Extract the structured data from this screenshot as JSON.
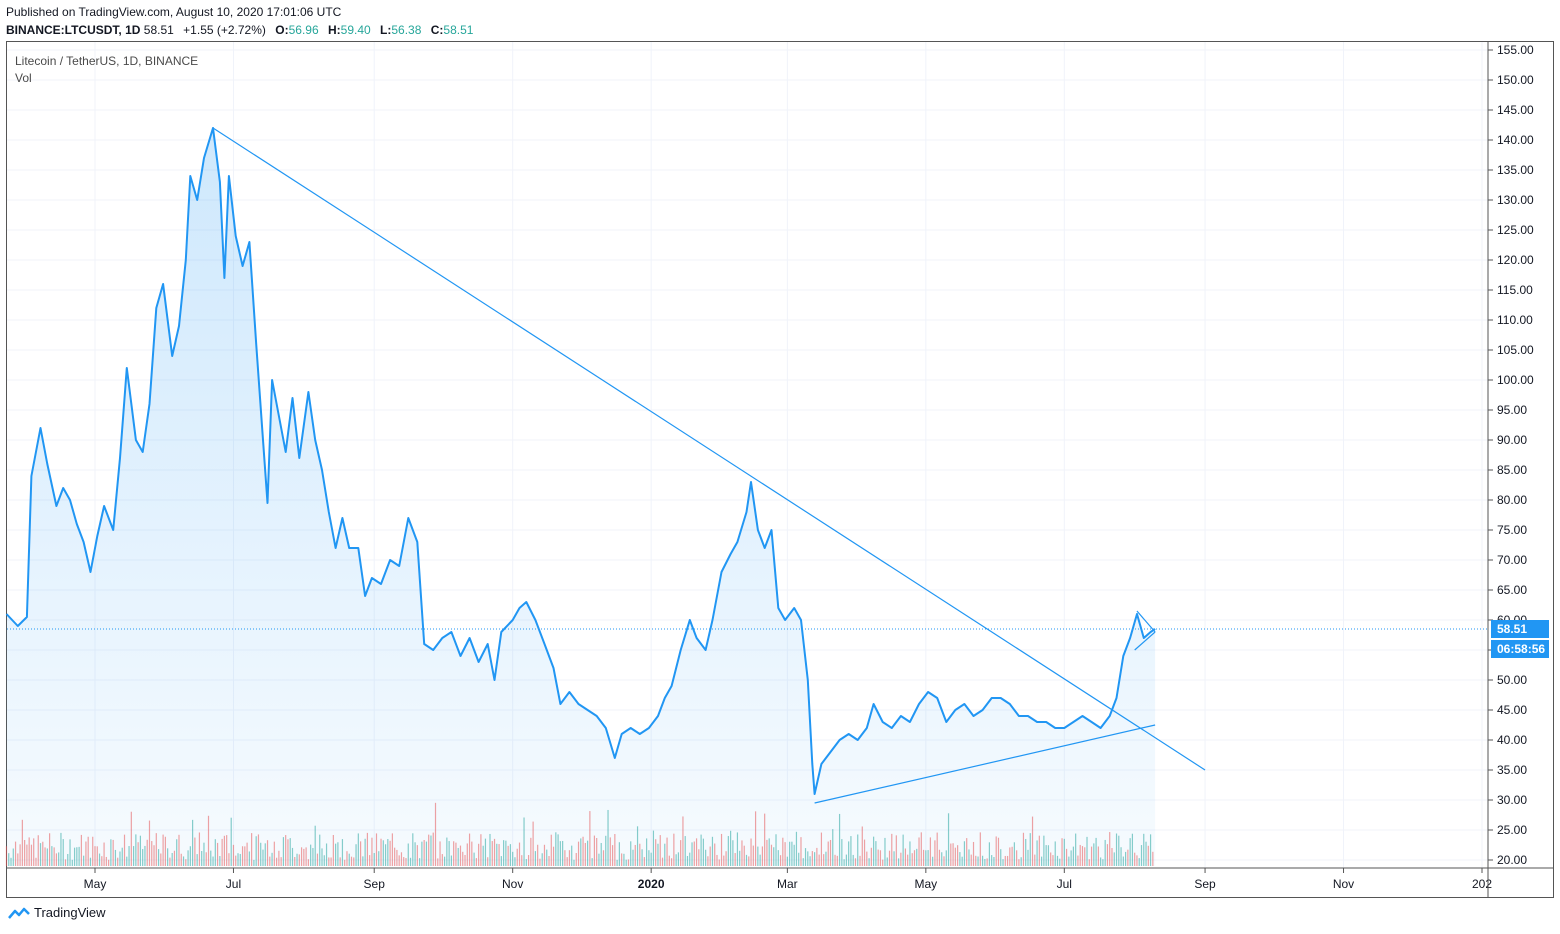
{
  "header": {
    "published": "Published on TradingView.com, August 10, 2020 17:01:06 UTC",
    "symbol": "BINANCE:LTCUSDT, 1D",
    "last": "58.51",
    "change": "+1.55 (+2.72%)",
    "open_label": "O:",
    "open": "56.96",
    "high_label": "H:",
    "high": "59.40",
    "low_label": "L:",
    "low": "56.38",
    "close_label": "C:",
    "close": "58.51"
  },
  "legend": {
    "series_title": "Litecoin / TetherUS, 1D, BINANCE",
    "volume_title": "Vol"
  },
  "price_badge": "58.51",
  "countdown_badge": "06:58:56",
  "footer": {
    "brand": "TradingView"
  },
  "colors": {
    "line": "#2196f3",
    "fill": "#2196f3",
    "trend": "#2196f3",
    "vol_up": "#26a69a",
    "vol_down": "#ef5350",
    "grid": "#f0f3fa"
  },
  "chart_data": {
    "type": "area",
    "title": "Litecoin / TetherUS, 1D, BINANCE",
    "xlabel": "",
    "ylabel": "",
    "ylim": [
      20,
      155
    ],
    "y_ticks": [
      "20.00",
      "25.00",
      "30.00",
      "35.00",
      "40.00",
      "45.00",
      "50.00",
      "55.00",
      "60.00",
      "65.00",
      "70.00",
      "75.00",
      "80.00",
      "85.00",
      "90.00",
      "95.00",
      "100.00",
      "105.00",
      "110.00",
      "115.00",
      "120.00",
      "125.00",
      "130.00",
      "135.00",
      "140.00",
      "145.00",
      "150.00",
      "155.00"
    ],
    "x_ticks": [
      {
        "label": "May",
        "date": "2019-05-01"
      },
      {
        "label": "Jul",
        "date": "2019-07-01"
      },
      {
        "label": "Sep",
        "date": "2019-09-01"
      },
      {
        "label": "Nov",
        "date": "2019-11-01"
      },
      {
        "label": "2020",
        "date": "2020-01-01"
      },
      {
        "label": "Mar",
        "date": "2020-03-01"
      },
      {
        "label": "May",
        "date": "2020-05-01"
      },
      {
        "label": "Jul",
        "date": "2020-07-01"
      },
      {
        "label": "Sep",
        "date": "2020-09-01"
      },
      {
        "label": "Nov",
        "date": "2020-11-01"
      },
      {
        "label": "202",
        "date": "2021-01-01"
      }
    ],
    "grid": true,
    "series": [
      {
        "values": [
          [
            "2019-03-23",
            61.0
          ],
          [
            "2019-03-28",
            59.0
          ],
          [
            "2019-04-01",
            60.5
          ],
          [
            "2019-04-03",
            84.0
          ],
          [
            "2019-04-07",
            92.0
          ],
          [
            "2019-04-10",
            86.0
          ],
          [
            "2019-04-14",
            79.0
          ],
          [
            "2019-04-17",
            82.0
          ],
          [
            "2019-04-20",
            80.0
          ],
          [
            "2019-04-23",
            76.0
          ],
          [
            "2019-04-26",
            73.0
          ],
          [
            "2019-04-29",
            68.0
          ],
          [
            "2019-05-02",
            74.0
          ],
          [
            "2019-05-05",
            79.0
          ],
          [
            "2019-05-09",
            75.0
          ],
          [
            "2019-05-12",
            87.0
          ],
          [
            "2019-05-15",
            102.0
          ],
          [
            "2019-05-19",
            90.0
          ],
          [
            "2019-05-22",
            88.0
          ],
          [
            "2019-05-25",
            96.0
          ],
          [
            "2019-05-28",
            112.0
          ],
          [
            "2019-05-31",
            116.0
          ],
          [
            "2019-06-04",
            104.0
          ],
          [
            "2019-06-07",
            109.0
          ],
          [
            "2019-06-10",
            120.0
          ],
          [
            "2019-06-12",
            134.0
          ],
          [
            "2019-06-15",
            130.0
          ],
          [
            "2019-06-18",
            137.0
          ],
          [
            "2019-06-22",
            142.0
          ],
          [
            "2019-06-25",
            133.0
          ],
          [
            "2019-06-27",
            117.0
          ],
          [
            "2019-06-29",
            134.0
          ],
          [
            "2019-07-02",
            124.0
          ],
          [
            "2019-07-05",
            119.0
          ],
          [
            "2019-07-08",
            123.0
          ],
          [
            "2019-07-11",
            106.0
          ],
          [
            "2019-07-14",
            90.0
          ],
          [
            "2019-07-16",
            79.5
          ],
          [
            "2019-07-18",
            100.0
          ],
          [
            "2019-07-21",
            94.0
          ],
          [
            "2019-07-24",
            88.0
          ],
          [
            "2019-07-27",
            97.0
          ],
          [
            "2019-07-30",
            87.0
          ],
          [
            "2019-08-03",
            98.0
          ],
          [
            "2019-08-06",
            90.0
          ],
          [
            "2019-08-09",
            85.0
          ],
          [
            "2019-08-12",
            78.0
          ],
          [
            "2019-08-15",
            72.0
          ],
          [
            "2019-08-18",
            77.0
          ],
          [
            "2019-08-21",
            72.0
          ],
          [
            "2019-08-25",
            72.0
          ],
          [
            "2019-08-28",
            64.0
          ],
          [
            "2019-08-31",
            67.0
          ],
          [
            "2019-09-04",
            66.0
          ],
          [
            "2019-09-08",
            70.0
          ],
          [
            "2019-09-12",
            69.0
          ],
          [
            "2019-09-16",
            77.0
          ],
          [
            "2019-09-20",
            73.0
          ],
          [
            "2019-09-23",
            56.0
          ],
          [
            "2019-09-27",
            55.0
          ],
          [
            "2019-10-01",
            57.0
          ],
          [
            "2019-10-05",
            58.0
          ],
          [
            "2019-10-09",
            54.0
          ],
          [
            "2019-10-13",
            57.0
          ],
          [
            "2019-10-17",
            53.0
          ],
          [
            "2019-10-21",
            56.0
          ],
          [
            "2019-10-24",
            50.0
          ],
          [
            "2019-10-27",
            58.0
          ],
          [
            "2019-11-01",
            60.0
          ],
          [
            "2019-11-04",
            62.0
          ],
          [
            "2019-11-07",
            63.0
          ],
          [
            "2019-11-11",
            60.0
          ],
          [
            "2019-11-15",
            56.0
          ],
          [
            "2019-11-19",
            52.0
          ],
          [
            "2019-11-22",
            46.0
          ],
          [
            "2019-11-26",
            48.0
          ],
          [
            "2019-11-30",
            46.0
          ],
          [
            "2019-12-04",
            45.0
          ],
          [
            "2019-12-08",
            44.0
          ],
          [
            "2019-12-12",
            42.0
          ],
          [
            "2019-12-16",
            37.0
          ],
          [
            "2019-12-19",
            41.0
          ],
          [
            "2019-12-23",
            42.0
          ],
          [
            "2019-12-27",
            41.0
          ],
          [
            "2019-12-31",
            42.0
          ],
          [
            "2020-01-04",
            44.0
          ],
          [
            "2020-01-07",
            47.0
          ],
          [
            "2020-01-10",
            49.0
          ],
          [
            "2020-01-14",
            55.0
          ],
          [
            "2020-01-18",
            60.0
          ],
          [
            "2020-01-21",
            57.0
          ],
          [
            "2020-01-25",
            55.0
          ],
          [
            "2020-01-28",
            60.0
          ],
          [
            "2020-02-01",
            68.0
          ],
          [
            "2020-02-05",
            71.0
          ],
          [
            "2020-02-08",
            73.0
          ],
          [
            "2020-02-12",
            78.0
          ],
          [
            "2020-02-14",
            83.0
          ],
          [
            "2020-02-17",
            75.0
          ],
          [
            "2020-02-20",
            72.0
          ],
          [
            "2020-02-23",
            75.0
          ],
          [
            "2020-02-26",
            62.0
          ],
          [
            "2020-02-29",
            60.0
          ],
          [
            "2020-03-04",
            62.0
          ],
          [
            "2020-03-07",
            60.0
          ],
          [
            "2020-03-10",
            50.0
          ],
          [
            "2020-03-12",
            36.0
          ],
          [
            "2020-03-13",
            31.0
          ],
          [
            "2020-03-16",
            36.0
          ],
          [
            "2020-03-20",
            38.0
          ],
          [
            "2020-03-24",
            40.0
          ],
          [
            "2020-03-28",
            41.0
          ],
          [
            "2020-04-01",
            40.0
          ],
          [
            "2020-04-05",
            42.0
          ],
          [
            "2020-04-08",
            46.0
          ],
          [
            "2020-04-12",
            43.0
          ],
          [
            "2020-04-16",
            42.0
          ],
          [
            "2020-04-20",
            44.0
          ],
          [
            "2020-04-24",
            43.0
          ],
          [
            "2020-04-28",
            46.0
          ],
          [
            "2020-05-02",
            48.0
          ],
          [
            "2020-05-06",
            47.0
          ],
          [
            "2020-05-10",
            43.0
          ],
          [
            "2020-05-14",
            45.0
          ],
          [
            "2020-05-18",
            46.0
          ],
          [
            "2020-05-22",
            44.0
          ],
          [
            "2020-05-26",
            45.0
          ],
          [
            "2020-05-30",
            47.0
          ],
          [
            "2020-06-03",
            47.0
          ],
          [
            "2020-06-07",
            46.0
          ],
          [
            "2020-06-11",
            44.0
          ],
          [
            "2020-06-15",
            44.0
          ],
          [
            "2020-06-19",
            43.0
          ],
          [
            "2020-06-23",
            43.0
          ],
          [
            "2020-06-27",
            42.0
          ],
          [
            "2020-07-01",
            42.0
          ],
          [
            "2020-07-05",
            43.0
          ],
          [
            "2020-07-09",
            44.0
          ],
          [
            "2020-07-13",
            43.0
          ],
          [
            "2020-07-17",
            42.0
          ],
          [
            "2020-07-21",
            44.0
          ],
          [
            "2020-07-24",
            47.0
          ],
          [
            "2020-07-27",
            54.0
          ],
          [
            "2020-07-30",
            57.0
          ],
          [
            "2020-08-02",
            61.0
          ],
          [
            "2020-08-05",
            57.0
          ],
          [
            "2020-08-08",
            58.0
          ],
          [
            "2020-08-10",
            58.51
          ]
        ]
      }
    ],
    "trendlines": [
      {
        "from": [
          "2019-06-22",
          142.0
        ],
        "to": [
          "2020-09-01",
          35.0
        ]
      },
      {
        "from": [
          "2020-03-13",
          29.5
        ],
        "to": [
          "2020-08-10",
          42.5
        ]
      },
      {
        "from": [
          "2020-08-02",
          61.5
        ],
        "to": [
          "2020-08-10",
          58.0
        ]
      },
      {
        "from": [
          "2020-08-01",
          55.0
        ],
        "to": [
          "2020-08-10",
          58.0
        ]
      }
    ],
    "volume_legend": "Vol",
    "current_price": 58.51
  }
}
